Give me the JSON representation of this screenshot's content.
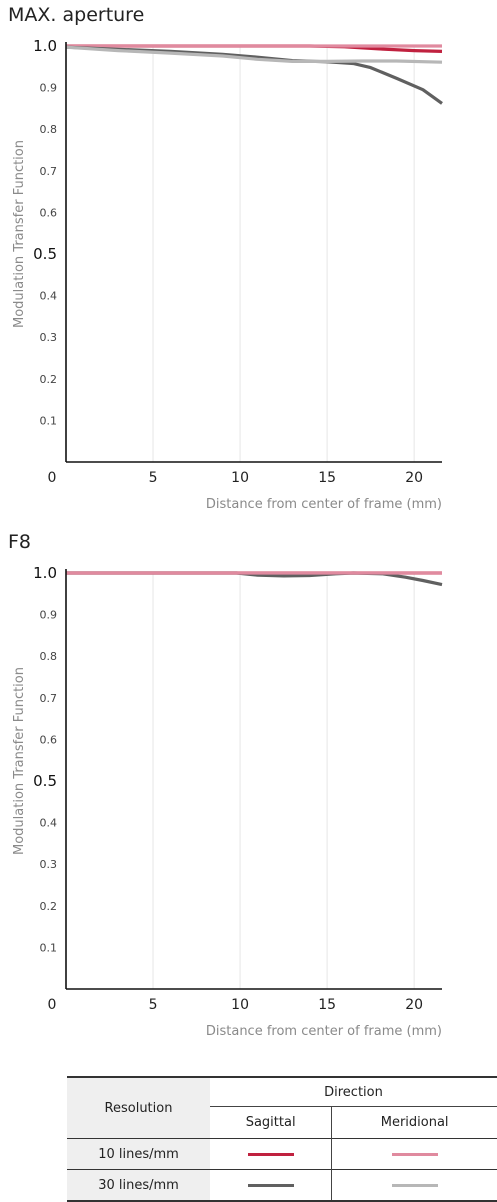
{
  "chart_data": [
    {
      "type": "line",
      "title": "MAX. aperture",
      "xlabel": "Distance from center of frame (mm)",
      "ylabel": "Modulation Transfer Function",
      "xlim": [
        0,
        21.6
      ],
      "ylim": [
        0,
        1.0
      ],
      "x_ticks": [
        "0",
        "5",
        "10",
        "15",
        "20"
      ],
      "y_ticks": [
        "1.0",
        "0.9",
        "0.8",
        "0.7",
        "0.6",
        "0.5",
        "0.4",
        "0.3",
        "0.2",
        "0.1"
      ],
      "grid": "vertical",
      "series": [
        {
          "color": "#c0213f",
          "width": 3.2,
          "points": [
            [
              0,
              1.0
            ],
            [
              5,
              1.0
            ],
            [
              10,
              1.0
            ],
            [
              14,
              1.0
            ],
            [
              16,
              0.998
            ],
            [
              18,
              0.993
            ],
            [
              20,
              0.989
            ],
            [
              21.6,
              0.987
            ]
          ]
        },
        {
          "color": "#e08a9f",
          "width": 3.2,
          "points": [
            [
              0,
              1.0
            ],
            [
              10,
              1.0
            ],
            [
              15,
              1.0
            ],
            [
              20,
              1.0
            ],
            [
              21.6,
              1.0
            ]
          ]
        },
        {
          "color": "#606060",
          "width": 3.2,
          "points": [
            [
              0,
              0.997
            ],
            [
              3,
              0.992
            ],
            [
              6,
              0.987
            ],
            [
              9,
              0.98
            ],
            [
              11,
              0.973
            ],
            [
              13,
              0.965
            ],
            [
              15,
              0.962
            ],
            [
              16.5,
              0.958
            ],
            [
              17.5,
              0.948
            ],
            [
              19,
              0.922
            ],
            [
              20.5,
              0.895
            ],
            [
              21.6,
              0.862
            ]
          ]
        },
        {
          "color": "#b7b7b7",
          "width": 3.2,
          "points": [
            [
              0,
              0.997
            ],
            [
              3,
              0.989
            ],
            [
              6,
              0.983
            ],
            [
              9,
              0.976
            ],
            [
              11,
              0.968
            ],
            [
              13,
              0.963
            ],
            [
              15,
              0.963
            ],
            [
              17,
              0.964
            ],
            [
              19,
              0.964
            ],
            [
              21.6,
              0.961
            ]
          ]
        }
      ]
    },
    {
      "type": "line",
      "title": "F8",
      "xlabel": "Distance from center of frame (mm)",
      "ylabel": "Modulation Transfer Function",
      "xlim": [
        0,
        21.6
      ],
      "ylim": [
        0,
        1.0
      ],
      "x_ticks": [
        "0",
        "5",
        "10",
        "15",
        "20"
      ],
      "y_ticks": [
        "1.0",
        "0.9",
        "0.8",
        "0.7",
        "0.6",
        "0.5",
        "0.4",
        "0.3",
        "0.2",
        "0.1"
      ],
      "grid": "vertical",
      "series": [
        {
          "color": "#c0213f",
          "width": 3.2,
          "points": [
            [
              0,
              1.0
            ],
            [
              21.6,
              1.0
            ]
          ]
        },
        {
          "color": "#606060",
          "width": 3.2,
          "points": [
            [
              0,
              1.0
            ],
            [
              9.8,
              1.0
            ],
            [
              11,
              0.995
            ],
            [
              12.5,
              0.993
            ],
            [
              14,
              0.994
            ],
            [
              15.5,
              0.998
            ],
            [
              16.5,
              1.0
            ],
            [
              18.2,
              0.998
            ],
            [
              19.5,
              0.99
            ],
            [
              20.5,
              0.982
            ],
            [
              21.6,
              0.972
            ]
          ]
        },
        {
          "color": "#e08a9f",
          "width": 3.2,
          "points": [
            [
              0,
              1.0
            ],
            [
              21.6,
              1.0
            ]
          ]
        }
      ]
    }
  ],
  "legend": {
    "resolution_header": "Resolution",
    "direction_header": "Direction",
    "sagittal": "Sagittal",
    "meridional": "Meridional",
    "rows": [
      {
        "label": "10 lines/mm",
        "sagittal_color": "#c0213f",
        "meridional_color": "#e08a9f"
      },
      {
        "label": "30 lines/mm",
        "sagittal_color": "#606060",
        "meridional_color": "#b7b7b7"
      }
    ]
  }
}
